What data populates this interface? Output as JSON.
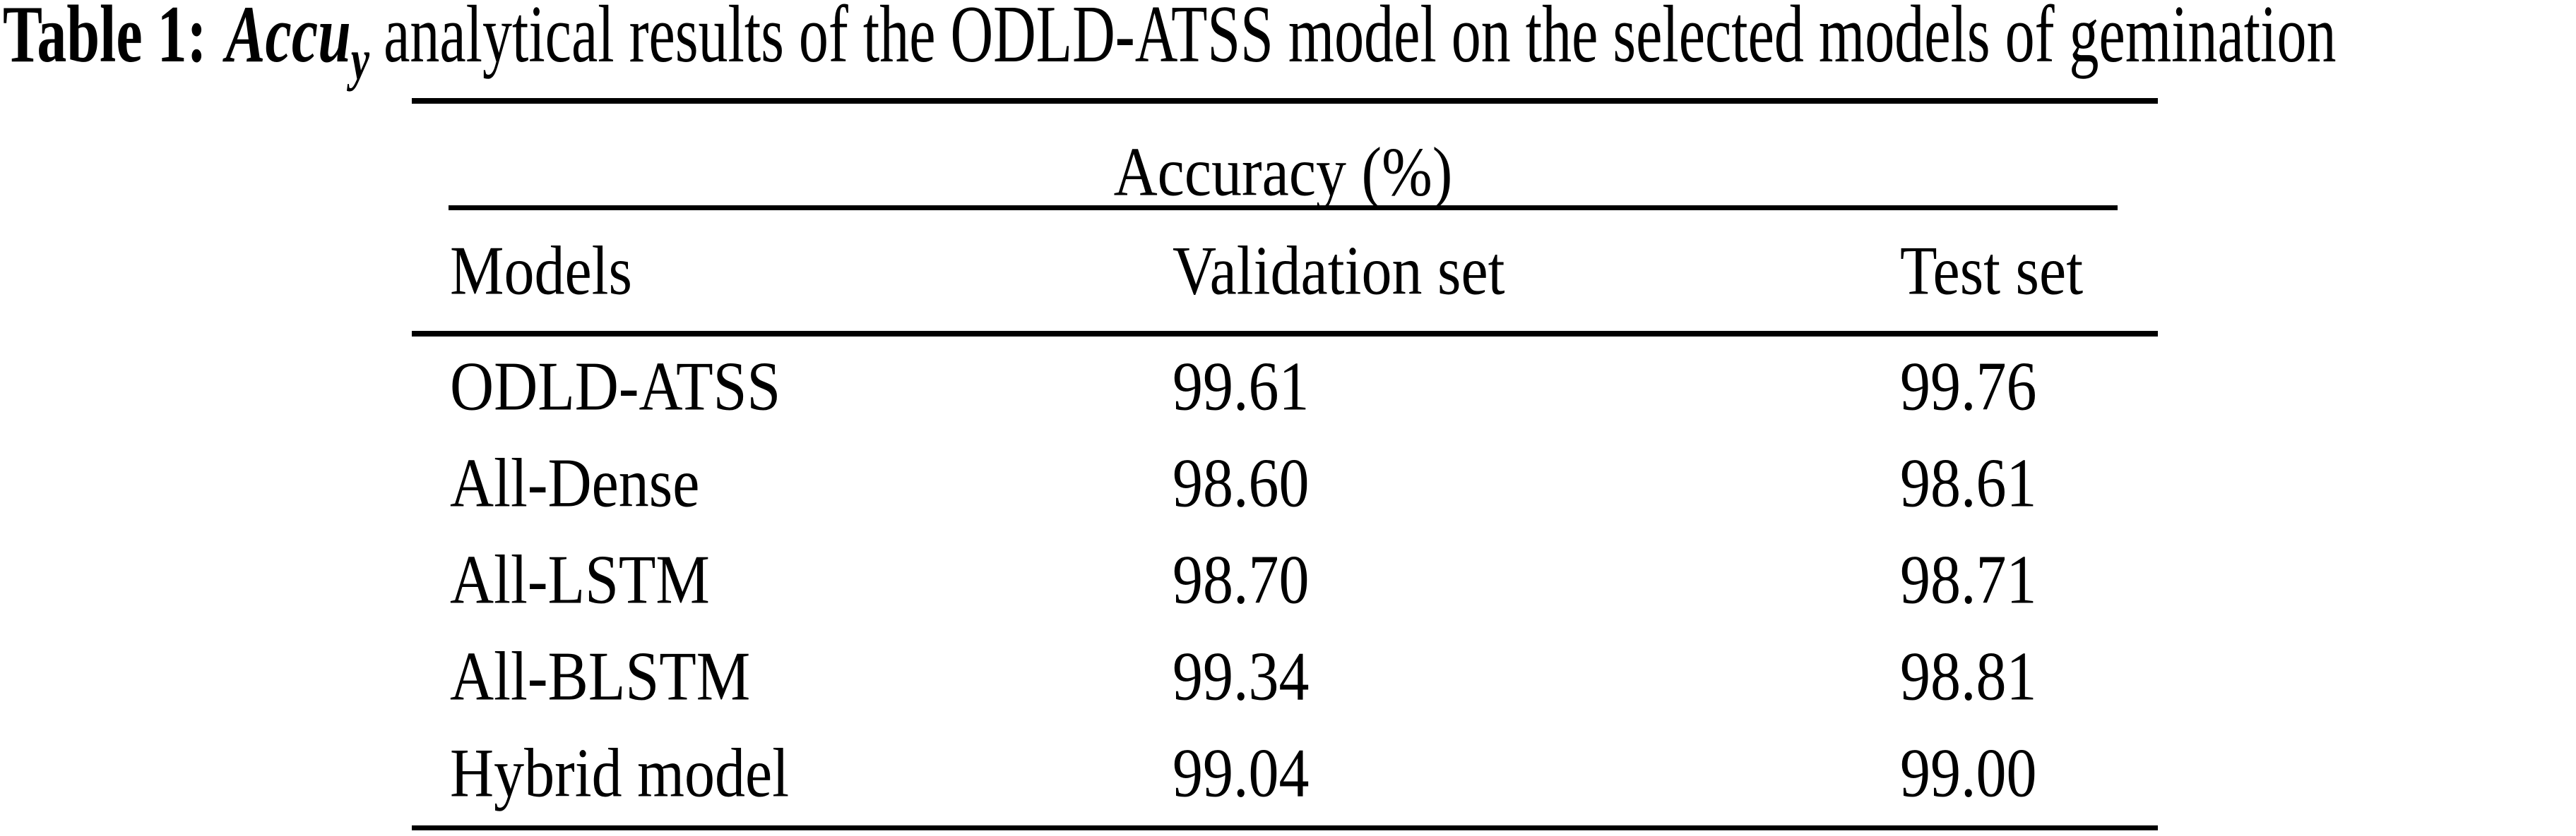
{
  "page": {
    "background_color": "#ffffff",
    "text_color": "#000000",
    "rule_color": "#000000"
  },
  "caption": {
    "label": "Table 1:",
    "metric": "Accu",
    "metric_subscript": "y",
    "text": "analytical results of the ODLD-ATSS model on the selected models of gemination"
  },
  "table": {
    "group_header": "Accuracy (%)",
    "columns": [
      "Models",
      "Validation set",
      "Test set"
    ],
    "rows": [
      {
        "model": "ODLD-ATSS",
        "validation": "99.61",
        "test": "99.76"
      },
      {
        "model": "All-Dense",
        "validation": "98.60",
        "test": "98.61"
      },
      {
        "model": "All-LSTM",
        "validation": "98.70",
        "test": "98.71"
      },
      {
        "model": "All-BLSTM",
        "validation": "99.34",
        "test": "98.81"
      },
      {
        "model": "Hybrid model",
        "validation": "99.04",
        "test": "99.00"
      }
    ]
  }
}
